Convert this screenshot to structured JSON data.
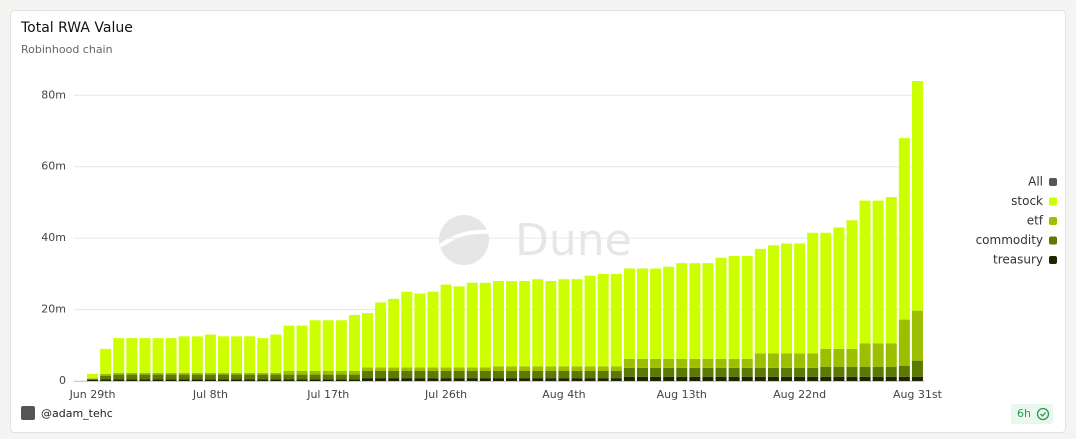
{
  "chart_data": {
    "type": "stacked_bar",
    "title": "Total RWA Value",
    "subtitle": "Robinhood chain",
    "watermark": "Dune",
    "author": "@adam_tehc",
    "refresh": "6h",
    "legend_all": "All",
    "legend_all_color": "#555555",
    "legend_position": "right",
    "grid": true,
    "categories": [
      "Jun 29th",
      null,
      null,
      null,
      null,
      null,
      null,
      null,
      null,
      "Jul 8th",
      null,
      null,
      null,
      null,
      null,
      null,
      null,
      null,
      "Jul 17th",
      null,
      null,
      null,
      null,
      null,
      null,
      null,
      null,
      "Jul 26th",
      null,
      null,
      null,
      null,
      null,
      null,
      null,
      null,
      "Aug 4th",
      null,
      null,
      null,
      null,
      null,
      null,
      null,
      null,
      "Aug 13th",
      null,
      null,
      null,
      null,
      null,
      null,
      null,
      null,
      "Aug 22nd",
      null,
      null,
      null,
      null,
      null,
      null,
      null,
      null,
      "Aug 31st"
    ],
    "ylim": [
      0,
      84
    ],
    "yticks": [
      0,
      {
        "value": 20,
        "label": "20m"
      },
      {
        "value": 40,
        "label": "40m"
      },
      {
        "value": 60,
        "label": "60m"
      },
      {
        "value": 80,
        "label": "80m"
      }
    ],
    "series": [
      {
        "name": "stock",
        "color": "#ccff00",
        "values": [
          1.2,
          7,
          9.7,
          9.7,
          9.7,
          9.7,
          9.7,
          10.2,
          10.2,
          10.7,
          10.2,
          10.2,
          10.2,
          9.7,
          10.7,
          12.7,
          12.7,
          14.2,
          14.2,
          14.2,
          15.7,
          15.2,
          18.2,
          19.2,
          21.2,
          20.7,
          21.2,
          23.2,
          22.7,
          23.7,
          23.7,
          23.9,
          23.9,
          23.9,
          24.4,
          23.9,
          24.4,
          24.4,
          25.4,
          25.9,
          25.9,
          25.3,
          25.3,
          25.3,
          25.8,
          26.8,
          26.8,
          26.8,
          28.3,
          28.8,
          28.8,
          29.3,
          30.3,
          30.8,
          30.8,
          33.8,
          32.5,
          34,
          36,
          40,
          40,
          41,
          50.8,
          64.3
        ]
      },
      {
        "name": "etf",
        "color": "#9cc000",
        "values": [
          0.2,
          0.5,
          0.5,
          0.5,
          0.5,
          0.5,
          0.5,
          0.5,
          0.5,
          0.5,
          0.5,
          0.5,
          0.5,
          0.5,
          0.5,
          1,
          1,
          1,
          1,
          1,
          1,
          1,
          1,
          1,
          1,
          1,
          1,
          1,
          1,
          1,
          1,
          1.3,
          1.3,
          1.3,
          1.3,
          1.3,
          1.3,
          1.3,
          1.3,
          1.3,
          1.3,
          2.5,
          2.5,
          2.5,
          2.5,
          2.5,
          2.5,
          2.5,
          2.5,
          2.5,
          2.5,
          4,
          4,
          4,
          4,
          4,
          5,
          5,
          5,
          6.5,
          6.5,
          6.5,
          13,
          14
        ]
      },
      {
        "name": "commodity",
        "color": "#5c7a00",
        "values": [
          0.3,
          1,
          1.3,
          1.3,
          1.3,
          1.3,
          1.3,
          1.3,
          1.3,
          1.3,
          1.3,
          1.3,
          1.3,
          1.3,
          1.3,
          1.3,
          1.3,
          1.3,
          1.3,
          1.3,
          1.3,
          2,
          2,
          2,
          2,
          2,
          2,
          2,
          2,
          2,
          2,
          2,
          2,
          2,
          2,
          2,
          2,
          2,
          2,
          2,
          2,
          2.5,
          2.5,
          2.5,
          2.5,
          2.5,
          2.5,
          2.5,
          2.5,
          2.5,
          2.5,
          2.5,
          2.5,
          2.5,
          2.5,
          2.5,
          2.8,
          2.8,
          2.8,
          2.8,
          2.8,
          2.8,
          3,
          4.5
        ]
      },
      {
        "name": "treasury",
        "color": "#1e2600",
        "values": [
          0.3,
          0.5,
          0.5,
          0.5,
          0.5,
          0.5,
          0.5,
          0.5,
          0.5,
          0.5,
          0.5,
          0.5,
          0.5,
          0.5,
          0.5,
          0.5,
          0.5,
          0.5,
          0.5,
          0.5,
          0.5,
          0.8,
          0.8,
          0.8,
          0.8,
          0.8,
          0.8,
          0.8,
          0.8,
          0.8,
          0.8,
          0.8,
          0.8,
          0.8,
          0.8,
          0.8,
          0.8,
          0.8,
          0.8,
          0.8,
          0.8,
          1.2,
          1.2,
          1.2,
          1.2,
          1.2,
          1.2,
          1.2,
          1.2,
          1.2,
          1.2,
          1.2,
          1.2,
          1.2,
          1.2,
          1.2,
          1.2,
          1.2,
          1.2,
          1.2,
          1.2,
          1.2,
          1.2,
          1.2
        ]
      }
    ]
  }
}
